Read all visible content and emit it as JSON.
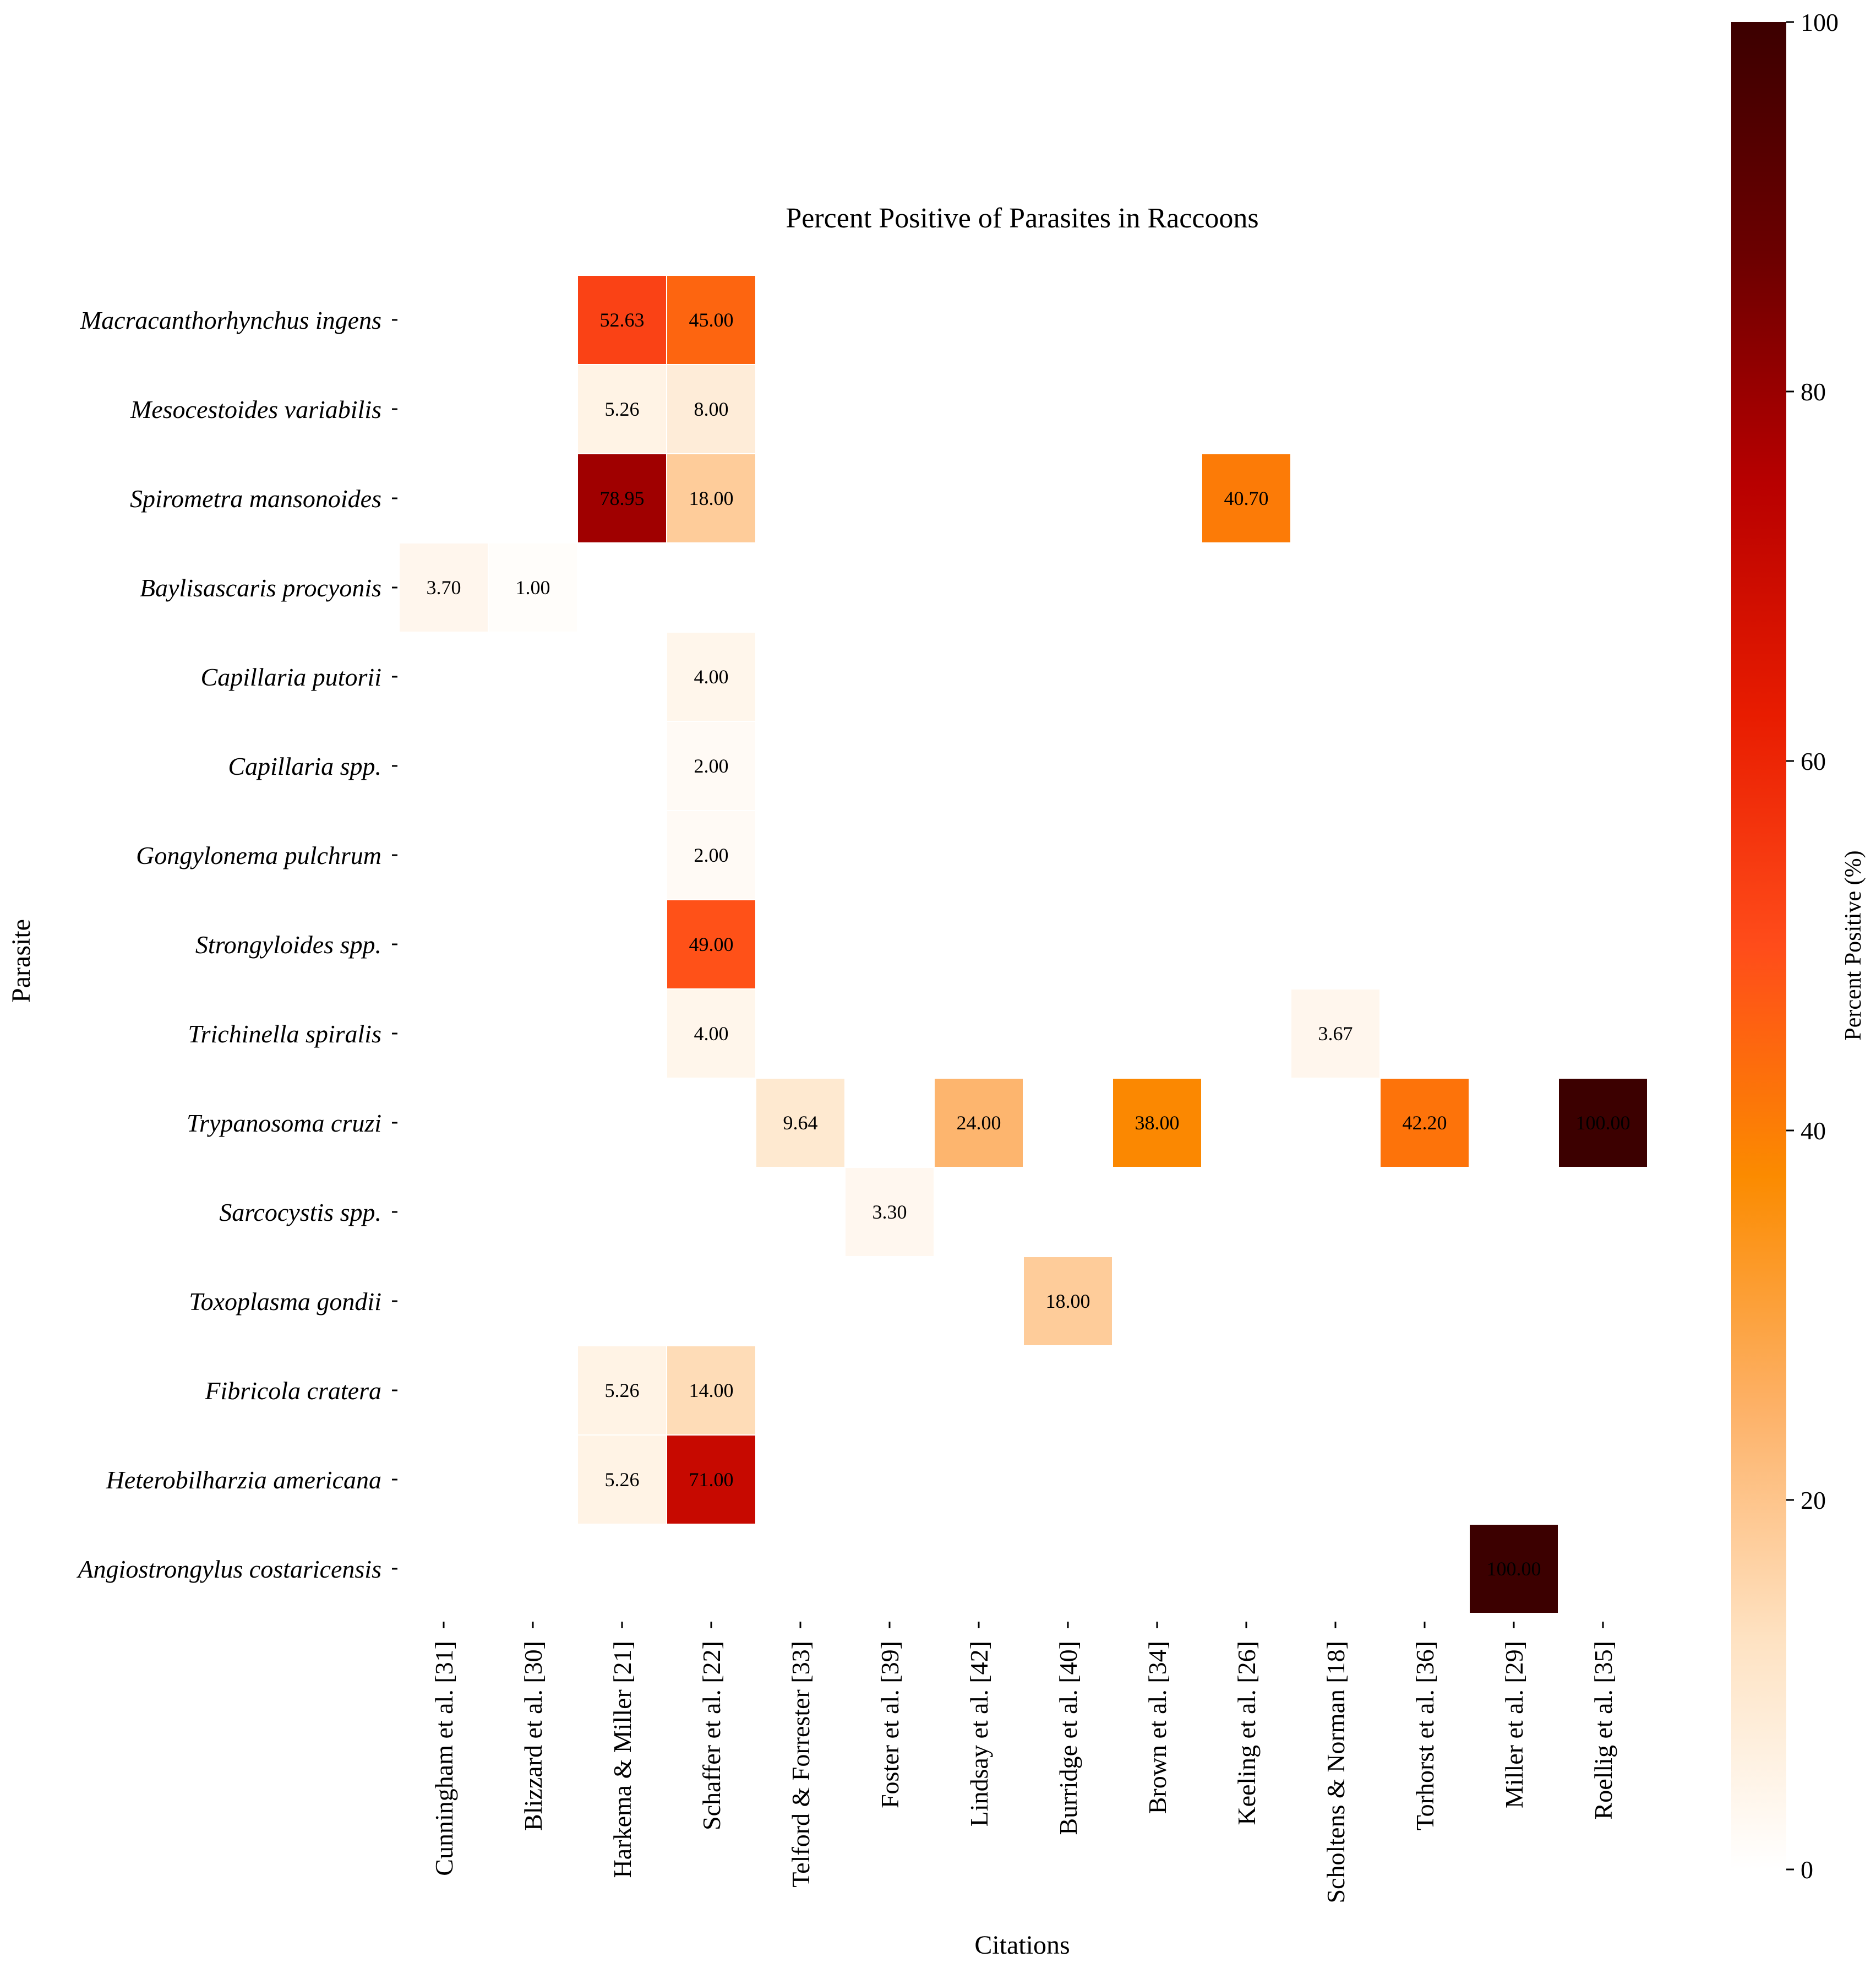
{
  "chart_data": {
    "type": "heatmap",
    "title": "Percent Positive of Parasites in Raccoons",
    "xlabel": "Citations",
    "ylabel": "Parasite",
    "colorbar_label": "Percent Positive (%)",
    "colorbar_range": [
      0,
      100
    ],
    "colorbar_ticks": [
      "0",
      "20",
      "40",
      "60",
      "80",
      "100"
    ],
    "colormap": [
      "#ffffff",
      "#fee2c2",
      "#fdb167",
      "#fb8b00",
      "#ff4c1a",
      "#e81c00",
      "#b80000",
      "#6b0000",
      "#3c0000"
    ],
    "columns": [
      "Cunningham et al. [31]",
      "Blizzard et al. [30]",
      "Harkema & Miller [21]",
      "Schaffer et al. [22]",
      "Telford & Forrester [33]",
      "Foster et al. [39]",
      "Lindsay et al. [42]",
      "Burridge et al. [40]",
      "Brown et al. [34]",
      "Keeling et al. [26]",
      "Scholtens & Norman [18]",
      "Torhorst et al. [36]",
      "Miller  et  al. [29]",
      "Roellig  et  al. [35]"
    ],
    "rows": [
      "Macracanthorhynchus ingens",
      "Mesocestoides variabilis",
      "Spirometra mansonoides",
      "Baylisascaris procyonis",
      "Capillaria putorii",
      "Capillaria spp.",
      "Gongylonema pulchrum",
      "Strongyloides spp.",
      "Trichinella spiralis",
      "Trypanosoma cruzi",
      "Sarcocystis spp.",
      "Toxoplasma gondii",
      "Fibricola cratera",
      "Heterobilharzia americana",
      "Angiostrongylus costaricensis"
    ],
    "cells": [
      {
        "row": 0,
        "col": 2,
        "value": 52.63,
        "label": "52.63"
      },
      {
        "row": 0,
        "col": 3,
        "value": 45.0,
        "label": "45.00"
      },
      {
        "row": 1,
        "col": 2,
        "value": 5.26,
        "label": "5.26"
      },
      {
        "row": 1,
        "col": 3,
        "value": 8.0,
        "label": "8.00"
      },
      {
        "row": 2,
        "col": 2,
        "value": 78.95,
        "label": "78.95"
      },
      {
        "row": 2,
        "col": 3,
        "value": 18.0,
        "label": "18.00"
      },
      {
        "row": 2,
        "col": 9,
        "value": 40.7,
        "label": "40.70"
      },
      {
        "row": 3,
        "col": 0,
        "value": 3.7,
        "label": "3.70"
      },
      {
        "row": 3,
        "col": 1,
        "value": 1.0,
        "label": "1.00"
      },
      {
        "row": 4,
        "col": 3,
        "value": 4.0,
        "label": "4.00"
      },
      {
        "row": 5,
        "col": 3,
        "value": 2.0,
        "label": "2.00"
      },
      {
        "row": 6,
        "col": 3,
        "value": 2.0,
        "label": "2.00"
      },
      {
        "row": 7,
        "col": 3,
        "value": 49.0,
        "label": "49.00"
      },
      {
        "row": 8,
        "col": 3,
        "value": 4.0,
        "label": "4.00"
      },
      {
        "row": 8,
        "col": 10,
        "value": 3.67,
        "label": "3.67"
      },
      {
        "row": 9,
        "col": 4,
        "value": 9.64,
        "label": "9.64"
      },
      {
        "row": 9,
        "col": 6,
        "value": 24.0,
        "label": "24.00"
      },
      {
        "row": 9,
        "col": 8,
        "value": 38.0,
        "label": "38.00"
      },
      {
        "row": 9,
        "col": 11,
        "value": 42.2,
        "label": "42.20"
      },
      {
        "row": 9,
        "col": 13,
        "value": 100.0,
        "label": "100.00"
      },
      {
        "row": 10,
        "col": 5,
        "value": 3.3,
        "label": "3.30"
      },
      {
        "row": 11,
        "col": 7,
        "value": 18.0,
        "label": "18.00"
      },
      {
        "row": 12,
        "col": 2,
        "value": 5.26,
        "label": "5.26"
      },
      {
        "row": 12,
        "col": 3,
        "value": 14.0,
        "label": "14.00"
      },
      {
        "row": 13,
        "col": 2,
        "value": 5.26,
        "label": "5.26"
      },
      {
        "row": 13,
        "col": 3,
        "value": 71.0,
        "label": "71.00"
      },
      {
        "row": 14,
        "col": 12,
        "value": 100.0,
        "label": "100.00"
      }
    ]
  }
}
